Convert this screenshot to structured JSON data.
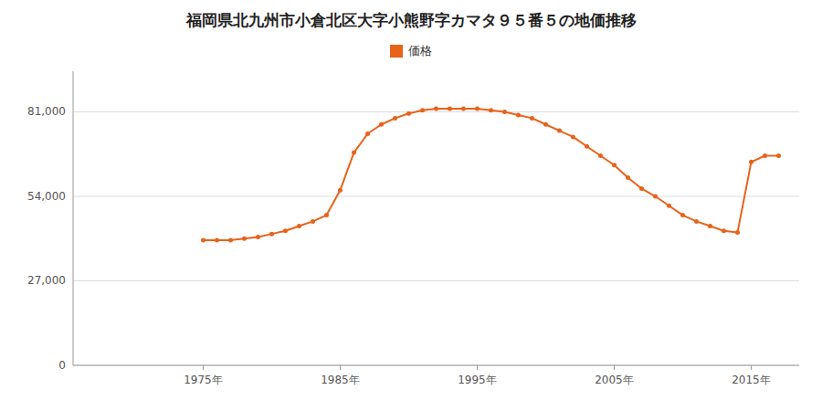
{
  "chart_data": {
    "type": "line",
    "title": "福岡県北九州市小倉北区大字小熊野字カマタ９５番５の地価推移",
    "x": [
      1975,
      1976,
      1977,
      1978,
      1979,
      1980,
      1981,
      1982,
      1983,
      1984,
      1985,
      1986,
      1987,
      1988,
      1989,
      1990,
      1991,
      1992,
      1993,
      1994,
      1995,
      1996,
      1997,
      1998,
      1999,
      2000,
      2001,
      2002,
      2003,
      2004,
      2005,
      2006,
      2007,
      2008,
      2009,
      2010,
      2011,
      2012,
      2013,
      2014,
      2015,
      2016,
      2017
    ],
    "series": [
      {
        "name": "価格",
        "color": "#E8621A",
        "marker": "circle",
        "values": [
          40000,
          40000,
          40000,
          40500,
          41000,
          42000,
          43000,
          44500,
          46000,
          48000,
          56000,
          68000,
          74000,
          77000,
          79000,
          80500,
          81500,
          82000,
          82000,
          82000,
          82000,
          81500,
          81000,
          80000,
          79000,
          77000,
          75000,
          73000,
          70000,
          67000,
          64000,
          60000,
          56500,
          54000,
          51000,
          48000,
          46000,
          44500,
          43000,
          42500,
          65000,
          67000,
          67000
        ]
      }
    ],
    "xlim": [
      1965.5,
      2018.5
    ],
    "xticks": [
      {
        "value": 1975,
        "label": "1975年"
      },
      {
        "value": 1985,
        "label": "1985年"
      },
      {
        "value": 1995,
        "label": "1995年"
      },
      {
        "value": 2005,
        "label": "2005年"
      },
      {
        "value": 2015,
        "label": "2015年"
      }
    ],
    "ylim": [
      0,
      94000
    ],
    "yticks": [
      0,
      {
        "value": 27000,
        "label": "27,000"
      },
      {
        "value": 54000,
        "label": "54,000"
      },
      {
        "value": 81000,
        "label": "81,000"
      }
    ],
    "grid": true,
    "legend": "top"
  }
}
